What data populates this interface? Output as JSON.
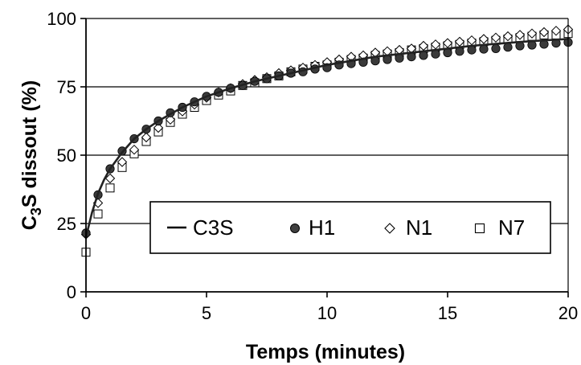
{
  "chart_data": {
    "type": "scatter",
    "title": "",
    "xlabel": "Temps (minutes)",
    "ylabel": {
      "pre": "C",
      "sub": "3",
      "post": "S dissout (%)"
    },
    "xlim": [
      0,
      20
    ],
    "ylim": [
      0,
      100
    ],
    "xticks": [
      0,
      5,
      10,
      15,
      20
    ],
    "xtick_labels": [
      "0",
      "5",
      "10",
      "15",
      "20"
    ],
    "yticks": [
      0,
      25,
      50,
      75,
      100
    ],
    "ytick_labels": [
      "0",
      "25",
      "50",
      "75",
      "100"
    ],
    "grid": "horizontal",
    "legend_position": "center-right",
    "series": [
      {
        "name": "C3S",
        "marker": "line",
        "x": [
          0,
          0.25,
          0.5,
          0.75,
          1,
          1.5,
          2,
          2.5,
          3,
          3.5,
          4,
          4.5,
          5,
          6,
          7,
          8,
          9,
          10,
          11,
          12,
          13,
          14,
          15,
          16,
          17,
          18,
          19,
          20
        ],
        "y": [
          20,
          29,
          36,
          41,
          45,
          51,
          56,
          59.5,
          62.5,
          65,
          67.5,
          69.5,
          71.5,
          74.5,
          77,
          79,
          81,
          83,
          84.5,
          86,
          87,
          88,
          89,
          90,
          90.7,
          91.4,
          92,
          92.5
        ]
      },
      {
        "name": "H1",
        "marker": "filled-circle",
        "x": [
          0,
          0.5,
          1,
          1.5,
          2,
          2.5,
          3,
          3.5,
          4,
          4.5,
          5,
          5.5,
          6,
          6.5,
          7,
          7.5,
          8,
          8.5,
          9,
          9.5,
          10,
          10.5,
          11,
          11.5,
          12,
          12.5,
          13,
          13.5,
          14,
          14.5,
          15,
          15.5,
          16,
          16.5,
          17,
          17.5,
          18,
          18.5,
          19,
          19.5,
          20
        ],
        "y": [
          21.5,
          35.5,
          45,
          51.5,
          56,
          59.5,
          62.5,
          65.5,
          67.5,
          69.5,
          71.5,
          73,
          74.5,
          75.5,
          77,
          78,
          79,
          80,
          80.5,
          81.5,
          82,
          83,
          83.5,
          84,
          84.5,
          85,
          85.5,
          86,
          86.5,
          87,
          87.5,
          88,
          88.5,
          88.8,
          89,
          89.5,
          90,
          90.3,
          90.6,
          91,
          91.3
        ]
      },
      {
        "name": "N1",
        "marker": "open-diamond",
        "x": [
          0,
          0.5,
          1,
          1.5,
          2,
          2.5,
          3,
          3.5,
          4,
          4.5,
          5,
          5.5,
          6,
          6.5,
          7,
          7.5,
          8,
          8.5,
          9,
          9.5,
          10,
          10.5,
          11,
          11.5,
          12,
          12.5,
          13,
          13.5,
          14,
          14.5,
          15,
          15.5,
          16,
          16.5,
          17,
          17.5,
          18,
          18.5,
          19,
          19.5,
          20
        ],
        "y": [
          21,
          32.5,
          41.5,
          47.5,
          52,
          56.5,
          60,
          63,
          66,
          68.5,
          71,
          73,
          74.5,
          76,
          77.5,
          78.5,
          80,
          81,
          82,
          83,
          84,
          85,
          86,
          86.5,
          87.5,
          88,
          88.5,
          89,
          90,
          90.5,
          91,
          91.5,
          92,
          92.5,
          93,
          93.5,
          94,
          94.5,
          95,
          95.5,
          96
        ]
      },
      {
        "name": "N7",
        "marker": "open-square",
        "x": [
          0,
          0.5,
          1,
          1.5,
          2,
          2.5,
          3,
          3.5,
          4,
          4.5,
          5,
          5.5,
          6,
          6.5,
          7,
          7.5,
          8,
          8.5,
          9,
          9.5,
          10,
          10.5,
          11,
          11.5,
          12,
          12.5,
          13,
          13.5,
          14,
          14.5,
          15,
          15.5,
          16,
          16.5,
          17,
          17.5,
          18,
          18.5,
          19,
          19.5,
          20
        ],
        "y": [
          14.5,
          28.5,
          38,
          45.5,
          50.5,
          55,
          58.5,
          62,
          65,
          67.5,
          70,
          72,
          73.5,
          75.5,
          76.5,
          78,
          79,
          80.5,
          81.5,
          82.5,
          83,
          84,
          85,
          85.5,
          86.5,
          87,
          87.5,
          88.5,
          89,
          89.5,
          90,
          90.5,
          91,
          91.5,
          92,
          92.5,
          93,
          93.5,
          94,
          94,
          94.5
        ]
      }
    ]
  }
}
